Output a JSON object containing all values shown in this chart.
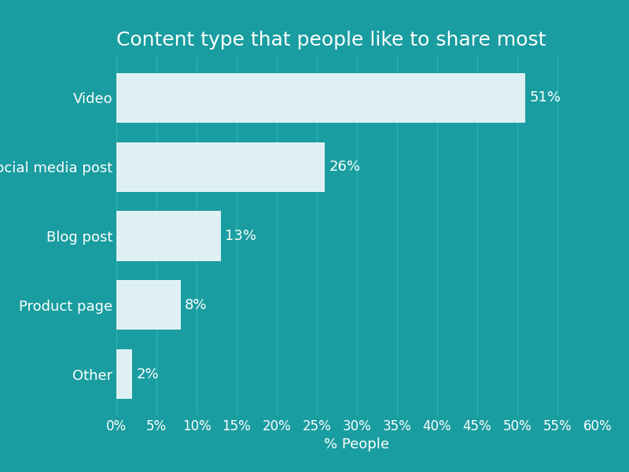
{
  "title": "Content type that people like to share most",
  "categories": [
    "Video",
    "Social media post",
    "Blog post",
    "Product page",
    "Other"
  ],
  "values": [
    51,
    26,
    13,
    8,
    2
  ],
  "labels": [
    "51%",
    "26%",
    "13%",
    "8%",
    "2%"
  ],
  "bar_color": "#dff0f5",
  "background_color": "#1a9da0",
  "text_color": "#ffffff",
  "xlabel": "% People",
  "xlim": [
    0,
    60
  ],
  "xticks": [
    0,
    5,
    10,
    15,
    20,
    25,
    30,
    35,
    40,
    45,
    50,
    55,
    60
  ],
  "xtick_labels": [
    "0%",
    "5%",
    "10%",
    "15%",
    "20%",
    "25%",
    "30%",
    "35%",
    "40%",
    "45%",
    "50%",
    "55%",
    "60%"
  ],
  "title_fontsize": 18,
  "label_fontsize": 13,
  "tick_fontsize": 12,
  "xlabel_fontsize": 13,
  "bar_height": 0.72,
  "grid_color": "#2ab5b8",
  "grid_linewidth": 0.8
}
